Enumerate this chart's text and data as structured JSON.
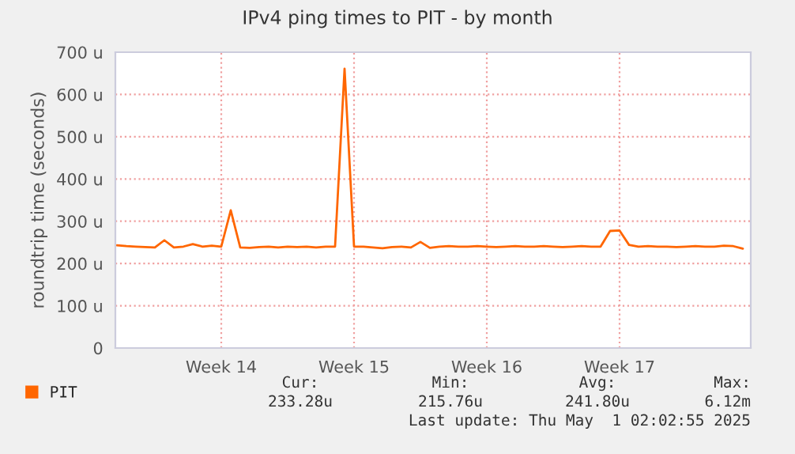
{
  "chart_data": {
    "type": "line",
    "title": "IPv4 ping times to PIT - by month",
    "ylabel": "roundtrip time (seconds)",
    "categories": [
      null,
      null,
      null,
      null,
      null,
      null,
      null,
      null,
      null,
      null,
      null,
      "Week 14",
      null,
      null,
      null,
      null,
      null,
      null,
      null,
      null,
      null,
      null,
      null,
      null,
      null,
      "Week 15",
      null,
      null,
      null,
      null,
      null,
      null,
      null,
      null,
      null,
      null,
      null,
      null,
      null,
      "Week 16",
      null,
      null,
      null,
      null,
      null,
      null,
      null,
      null,
      null,
      null,
      null,
      null,
      null,
      "Week 17",
      null,
      null,
      null,
      null,
      null,
      null,
      null,
      null,
      null,
      null,
      null,
      null,
      null
    ],
    "series": [
      {
        "name": "PIT",
        "color": "#ff6600",
        "values": [
          243,
          241,
          240,
          239,
          238,
          255,
          238,
          240,
          246,
          240,
          242,
          240,
          326,
          238,
          237,
          239,
          240,
          238,
          240,
          239,
          240,
          238,
          240,
          240,
          661,
          240,
          240,
          238,
          236,
          239,
          240,
          238,
          251,
          237,
          240,
          241,
          240,
          240,
          241,
          240,
          239,
          240,
          241,
          240,
          240,
          241,
          240,
          239,
          240,
          241,
          240,
          240,
          277,
          278,
          244,
          240,
          241,
          240,
          240,
          239,
          240,
          241,
          240,
          240,
          242,
          241,
          235
        ]
      }
    ],
    "ylim": [
      0,
      700
    ],
    "yticks": [
      0,
      {
        "value": 100,
        "label": "100 u"
      },
      {
        "value": 200,
        "label": "200 u"
      },
      {
        "value": 300,
        "label": "300 u"
      },
      {
        "value": 400,
        "label": "400 u"
      },
      {
        "value": 500,
        "label": "500 u"
      },
      {
        "value": 600,
        "label": "600 u"
      },
      {
        "value": 700,
        "label": "700 u"
      }
    ],
    "grid": true,
    "legend": "bottom left",
    "marker": "none",
    "line_style": "solid",
    "annotations": [
      "Cur:",
      "Min:",
      "Avg:",
      "Max:",
      "233.28u",
      "215.76u",
      "241.80u",
      "6.12m",
      "Last update: Thu May  1 02:02:55 2025"
    ]
  }
}
